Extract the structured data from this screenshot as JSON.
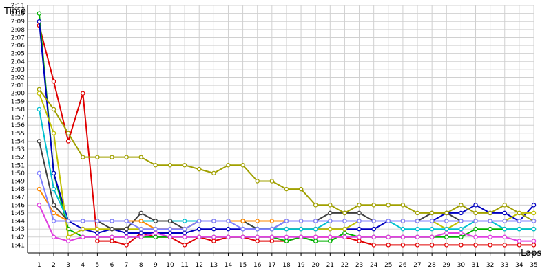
{
  "chart_data": {
    "type": "line",
    "title": "",
    "xlabel": "Laps",
    "ylabel": "Time",
    "x": [
      1,
      2,
      3,
      4,
      5,
      6,
      7,
      8,
      9,
      10,
      11,
      12,
      13,
      14,
      15,
      16,
      17,
      18,
      19,
      20,
      21,
      22,
      23,
      24,
      25,
      26,
      27,
      28,
      29,
      30,
      31,
      32,
      33,
      34,
      35
    ],
    "x_tick_labels": [
      "1",
      "2",
      "3",
      "4",
      "5",
      "6",
      "7",
      "8",
      "9",
      "10",
      "11",
      "12",
      "13",
      "14",
      "15",
      "16",
      "17",
      "18",
      "19",
      "20",
      "21",
      "22",
      "23",
      "24",
      "25",
      "26",
      "27",
      "28",
      "29",
      "30",
      "31",
      "32",
      "33",
      "34",
      "35"
    ],
    "y_tick_labels": [
      "1:41",
      "1:42",
      "1:43",
      "1:44",
      "1:45",
      "1:46",
      "1:47",
      "1:48",
      "1:49",
      "1:50",
      "1:51",
      "1:52",
      "1:53",
      "1:54",
      "1:55",
      "1:56",
      "1:57",
      "1:58",
      "1:59",
      "2:00",
      "2:01",
      "2:02",
      "2:03",
      "2:04",
      "2:05",
      "2:06",
      "2:07",
      "2:08",
      "2:09",
      "2:10",
      "2:11"
    ],
    "ylim_seconds": [
      100,
      131
    ],
    "xlim": [
      0.2,
      35
    ],
    "grid": true,
    "legend": "none",
    "series": [
      {
        "color": "#e00000",
        "values": [
          128.5,
          121.5,
          114,
          120,
          101.5,
          101.5,
          101,
          102.5,
          102,
          102,
          101,
          102,
          101.5,
          102,
          102,
          101.5,
          101.5,
          101.5,
          102,
          102,
          102,
          102,
          101.5,
          101,
          101,
          101,
          101,
          101,
          101,
          101,
          101,
          101,
          101,
          101,
          101
        ]
      },
      {
        "color": "#00b000",
        "values": [
          130,
          110,
          103,
          102,
          102,
          102,
          102,
          102,
          102,
          102,
          102,
          102,
          102,
          102,
          102,
          102,
          102,
          101.5,
          102,
          101.5,
          101.5,
          102.5,
          102,
          102,
          102,
          102,
          102,
          102,
          102,
          102,
          103,
          103,
          103,
          103,
          103
        ]
      },
      {
        "color": "#0000c0",
        "values": [
          129,
          110,
          104,
          103,
          102.5,
          103,
          102.5,
          102.5,
          102.5,
          102.5,
          102.5,
          103,
          103,
          103,
          103,
          103,
          103,
          103,
          103,
          103,
          103,
          103,
          103,
          103,
          104,
          104,
          104,
          104,
          105,
          105,
          106,
          105,
          105,
          104,
          106
        ]
      },
      {
        "color": "#e040e0",
        "values": [
          106,
          102,
          101.5,
          102,
          102,
          102,
          102,
          102,
          102.5,
          102,
          102,
          102,
          102,
          102,
          102,
          102,
          102,
          102,
          102,
          102,
          102,
          102,
          102,
          102,
          102,
          102,
          102,
          102,
          102.5,
          102.5,
          102,
          102,
          102,
          101.5,
          101.5
        ]
      },
      {
        "color": "#c0c000",
        "values": [
          120,
          115,
          102,
          103,
          103,
          103,
          103,
          103,
          103,
          103,
          103,
          104,
          104,
          104,
          104,
          103,
          103,
          103,
          103,
          103,
          103,
          103,
          104,
          104,
          104,
          104,
          104,
          104,
          103,
          104,
          104,
          104,
          104,
          105,
          105
        ]
      },
      {
        "color": "#00c0d0",
        "values": [
          118,
          108,
          104,
          104,
          104,
          104,
          104,
          104,
          104,
          104,
          104,
          104,
          104,
          104,
          104,
          103,
          103,
          103,
          103,
          103,
          104,
          104,
          104,
          104,
          104,
          103,
          103,
          103,
          103,
          103,
          104,
          104,
          103,
          103,
          103
        ]
      },
      {
        "color": "#404040",
        "values": [
          114,
          106,
          104,
          104,
          104,
          103,
          103,
          105,
          104,
          104,
          103,
          104,
          104,
          104,
          104,
          103,
          103,
          104,
          104,
          104,
          105,
          105,
          105,
          104,
          104,
          104,
          104,
          105,
          105,
          104,
          104,
          104,
          104,
          104,
          104
        ]
      },
      {
        "color": "#a0a000",
        "values": [
          120.5,
          118,
          115,
          112,
          112,
          112,
          112,
          112,
          111,
          111,
          111,
          110.5,
          110,
          111,
          111,
          109,
          109,
          108,
          108,
          106,
          106,
          105,
          106,
          106,
          106,
          106,
          105,
          105,
          105,
          106,
          105,
          105,
          106,
          105,
          104
        ]
      },
      {
        "color": "#ff8800",
        "values": [
          108,
          105,
          104,
          104,
          104,
          104,
          104,
          104,
          103,
          103,
          103,
          104,
          104,
          104,
          104,
          104,
          104,
          104,
          104,
          104,
          104,
          104,
          104,
          104,
          104,
          104,
          104,
          104,
          104,
          104,
          104,
          104,
          104,
          104,
          104
        ]
      },
      {
        "color": "#8080ff",
        "values": [
          110,
          104,
          104,
          104,
          104,
          104,
          104,
          103,
          103,
          103,
          103,
          104,
          104,
          104,
          103,
          103,
          103,
          104,
          104,
          104,
          104,
          104,
          104,
          104,
          104,
          104,
          104,
          104,
          104,
          104,
          104,
          104,
          104,
          104,
          104
        ]
      }
    ]
  }
}
